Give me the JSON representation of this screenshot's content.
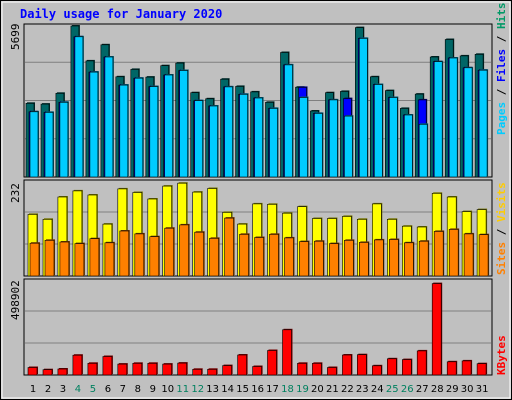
{
  "chart_data": [
    {
      "type": "bar",
      "title": "Daily usage for January 2020",
      "ymax_label": "5699",
      "ylim": [
        0,
        5699
      ],
      "series": [
        {
          "name": "Hits",
          "color": "#006666",
          "values": [
            2780,
            2750,
            3160,
            5699,
            4380,
            4990,
            3780,
            4060,
            3770,
            4200,
            4300,
            3180,
            2950,
            3690,
            3420,
            3210,
            2820,
            4700,
            3390,
            2490,
            3180,
            3230,
            5640,
            3780,
            3260,
            2590,
            3130,
            4530,
            5190,
            4570,
            4630
          ]
        },
        {
          "name": "Files",
          "color": "#0000ff",
          "values": [
            2460,
            2440,
            2820,
            5290,
            3960,
            4530,
            3470,
            3730,
            3410,
            3850,
            4020,
            2880,
            2680,
            3400,
            3120,
            2980,
            2590,
            4230,
            3380,
            2400,
            2910,
            2960,
            5230,
            3490,
            3000,
            2340,
            2910,
            4350,
            4490,
            4120,
            4030
          ]
        },
        {
          "name": "Pages",
          "color": "#00ccff",
          "values": [
            2460,
            2440,
            2820,
            5290,
            3960,
            4530,
            3470,
            3730,
            3410,
            3850,
            4020,
            2880,
            2680,
            3400,
            3120,
            2980,
            2590,
            4230,
            3000,
            2400,
            2910,
            2300,
            5230,
            3490,
            3000,
            2340,
            1990,
            4350,
            4490,
            4120,
            4030
          ]
        }
      ]
    },
    {
      "type": "bar",
      "ymax_label": "232",
      "ylim": [
        0,
        232
      ],
      "series": [
        {
          "name": "Visits",
          "color": "#ffff00",
          "values": [
            152,
            140,
            195,
            210,
            200,
            128,
            215,
            206,
            190,
            222,
            229,
            207,
            216,
            157,
            128,
            178,
            177,
            155,
            171,
            142,
            142,
            147,
            140,
            178,
            140,
            123,
            121,
            204,
            195,
            159,
            164
          ]
        },
        {
          "name": "Sites",
          "color": "#ff8000",
          "values": [
            81,
            88,
            84,
            80,
            92,
            82,
            111,
            104,
            97,
            118,
            126,
            108,
            93,
            143,
            103,
            95,
            103,
            94,
            85,
            86,
            80,
            88,
            83,
            89,
            90,
            82,
            86,
            110,
            115,
            104,
            102
          ]
        }
      ]
    },
    {
      "type": "bar",
      "ymax_label": "498902",
      "ylim": [
        0,
        498902
      ],
      "series": [
        {
          "name": "KBytes",
          "color": "#ff0000",
          "values": [
            40000,
            28000,
            32000,
            105000,
            62000,
            98000,
            58000,
            62000,
            62000,
            58000,
            63000,
            30000,
            30000,
            50000,
            106000,
            45000,
            130000,
            240000,
            62000,
            62000,
            40000,
            106000,
            108000,
            49000,
            86000,
            82000,
            128000,
            485000,
            70000,
            75000,
            60000
          ]
        }
      ]
    }
  ],
  "x_labels": [
    "1",
    "2",
    "3",
    "4",
    "5",
    "6",
    "7",
    "8",
    "9",
    "10",
    "11",
    "12",
    "13",
    "14",
    "15",
    "16",
    "17",
    "18",
    "19",
    "20",
    "21",
    "22",
    "23",
    "24",
    "25",
    "26",
    "27",
    "28",
    "29",
    "30",
    "31"
  ],
  "weekend_days": [
    "4",
    "5",
    "11",
    "12",
    "18",
    "19",
    "25",
    "26"
  ],
  "side_labels": {
    "top": [
      {
        "text": "Pages",
        "color": "#00ccff"
      },
      {
        "text": " / ",
        "color": "#000000"
      },
      {
        "text": "Files",
        "color": "#0000ff"
      },
      {
        "text": " / ",
        "color": "#000000"
      },
      {
        "text": "Hits",
        "color": "#009966"
      }
    ],
    "mid": [
      {
        "text": "Sites",
        "color": "#ff8000"
      },
      {
        "text": " / ",
        "color": "#000000"
      },
      {
        "text": "Visits",
        "color": "#ffcc00"
      }
    ],
    "bot": [
      {
        "text": "KBytes",
        "color": "#ff0000"
      }
    ]
  },
  "colors": {
    "background": "#c0c0c0",
    "title": "#0000ff",
    "grid": "#7f7f7f",
    "weekday_label": "#000000",
    "weekend_label": "#00805f"
  }
}
